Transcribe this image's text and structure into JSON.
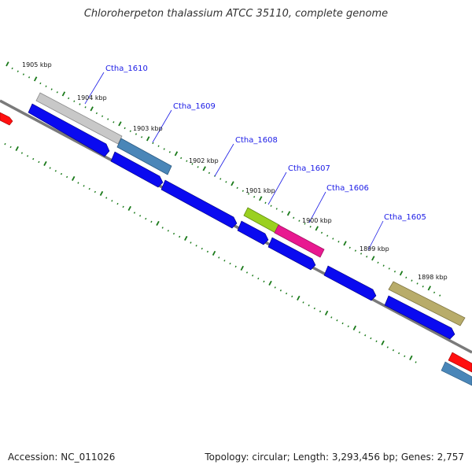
{
  "title": "Chloroherpeton thalassium ATCC 35110, complete genome",
  "accession": "Accession: NC_011026",
  "topology": "Topology: circular; Length: 3,293,456 bp; Genes: 2,757",
  "colors": {
    "backbone": "#7a7a7a",
    "tick": "#1a7a1a",
    "cds": "#0a0af0",
    "label": "#1a1ae6"
  },
  "kbp_labels": [
    "1905 kbp",
    "1904 kbp",
    "1903 kbp",
    "1902 kbp",
    "1901 kbp",
    "1900 kbp",
    "1899 kbp",
    "1898 kbp"
  ],
  "gene_labels": [
    "Ctha_1610",
    "Ctha_1609",
    "Ctha_1608",
    "Ctha_1607",
    "Ctha_1606",
    "Ctha_1605"
  ],
  "features": [
    {
      "name": "Ctha_1610",
      "color": "#c8c8c8"
    },
    {
      "name": "Ctha_1609",
      "color": "#4a86b8"
    },
    {
      "name": "Ctha_1607",
      "color": "#9ad020"
    },
    {
      "name": "Ctha_1606",
      "color": "#e81890"
    },
    {
      "name": "Ctha_1605",
      "color": "#b8ac6a"
    }
  ]
}
